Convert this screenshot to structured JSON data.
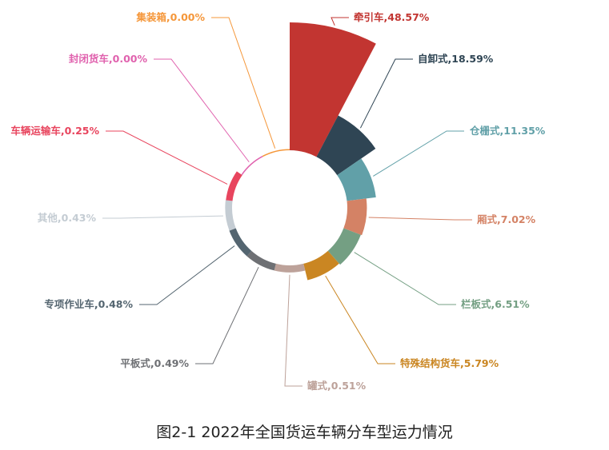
{
  "chart_data": {
    "type": "pie",
    "variant": "rose-donut",
    "title": "图2-1 2022年全国货运车辆分车型运力情况",
    "slices": [
      {
        "label": "牵引车,48.57%",
        "name": "牵引车",
        "value": 48.57,
        "color": "#c23531"
      },
      {
        "label": "自卸式,18.59%",
        "name": "自卸式",
        "value": 18.59,
        "color": "#2f4554"
      },
      {
        "label": "仓栅式,11.35%",
        "name": "仓栅式",
        "value": 11.35,
        "color": "#61a0a8"
      },
      {
        "label": "厢式,7.02%",
        "name": "厢式",
        "value": 7.02,
        "color": "#d48265"
      },
      {
        "label": "栏板式,6.51%",
        "name": "栏板式",
        "value": 6.51,
        "color": "#749f83"
      },
      {
        "label": "特殊结构货车,5.79%",
        "name": "特殊结构货车",
        "value": 5.79,
        "color": "#ca8622"
      },
      {
        "label": "罐式,0.51%",
        "name": "罐式",
        "value": 0.51,
        "color": "#bda29a"
      },
      {
        "label": "平板式,0.49%",
        "name": "平板式",
        "value": 0.49,
        "color": "#6e7074"
      },
      {
        "label": "专项作业车,0.48%",
        "name": "专项作业车",
        "value": 0.48,
        "color": "#546570"
      },
      {
        "label": "其他,0.43%",
        "name": "其他",
        "value": 0.43,
        "color": "#c4ccd3"
      },
      {
        "label": "车辆运输车,0.25%",
        "name": "车辆运输车",
        "value": 0.25,
        "color": "#e8455e"
      },
      {
        "label": "封闭货车,0.00%",
        "name": "封闭货车",
        "value": 0.0,
        "color": "#e062ae"
      },
      {
        "label": "集装箱,0.00%",
        "name": "集装箱",
        "value": 0.0,
        "color": "#f5973a"
      }
    ]
  }
}
